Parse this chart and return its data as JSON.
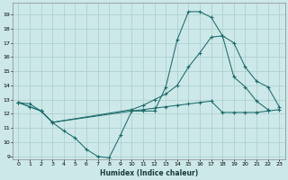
{
  "xlabel": "Humidex (Indice chaleur)",
  "xlim": [
    -0.5,
    23.5
  ],
  "ylim": [
    8.8,
    19.8
  ],
  "yticks": [
    9,
    10,
    11,
    12,
    13,
    14,
    15,
    16,
    17,
    18,
    19
  ],
  "xticks": [
    0,
    1,
    2,
    3,
    4,
    5,
    6,
    7,
    8,
    9,
    10,
    11,
    12,
    13,
    14,
    15,
    16,
    17,
    18,
    19,
    20,
    21,
    22,
    23
  ],
  "bg_color": "#cce8e8",
  "line_color": "#1c6b6b",
  "grid_color": "#aacccc",
  "line1_x": [
    0,
    1,
    2,
    3,
    4,
    5,
    6,
    7,
    8,
    9,
    10,
    11,
    12,
    13,
    14,
    15,
    16,
    17,
    18,
    19,
    20,
    21,
    22
  ],
  "line1_y": [
    12.8,
    12.7,
    12.2,
    11.4,
    10.8,
    10.3,
    9.5,
    9.0,
    8.9,
    10.5,
    12.2,
    12.2,
    12.2,
    13.9,
    17.2,
    19.2,
    19.2,
    18.8,
    17.5,
    14.6,
    13.9,
    12.9,
    12.3
  ],
  "line2_x": [
    0,
    1,
    2,
    3,
    10,
    11,
    12,
    13,
    14,
    15,
    16,
    17,
    18,
    19,
    20,
    21,
    22,
    23
  ],
  "line2_y": [
    12.8,
    12.5,
    12.2,
    11.4,
    12.3,
    12.6,
    13.0,
    13.4,
    14.0,
    15.3,
    16.3,
    17.4,
    17.5,
    17.0,
    15.3,
    14.3,
    13.9,
    12.5
  ],
  "line3_x": [
    0,
    2,
    3,
    10,
    11,
    12,
    13,
    14,
    15,
    16,
    17,
    18,
    19,
    20,
    21,
    22,
    23
  ],
  "line3_y": [
    12.8,
    12.2,
    11.4,
    12.2,
    12.3,
    12.4,
    12.5,
    12.6,
    12.7,
    12.8,
    12.9,
    12.1,
    12.1,
    12.1,
    12.1,
    12.2,
    12.3
  ]
}
